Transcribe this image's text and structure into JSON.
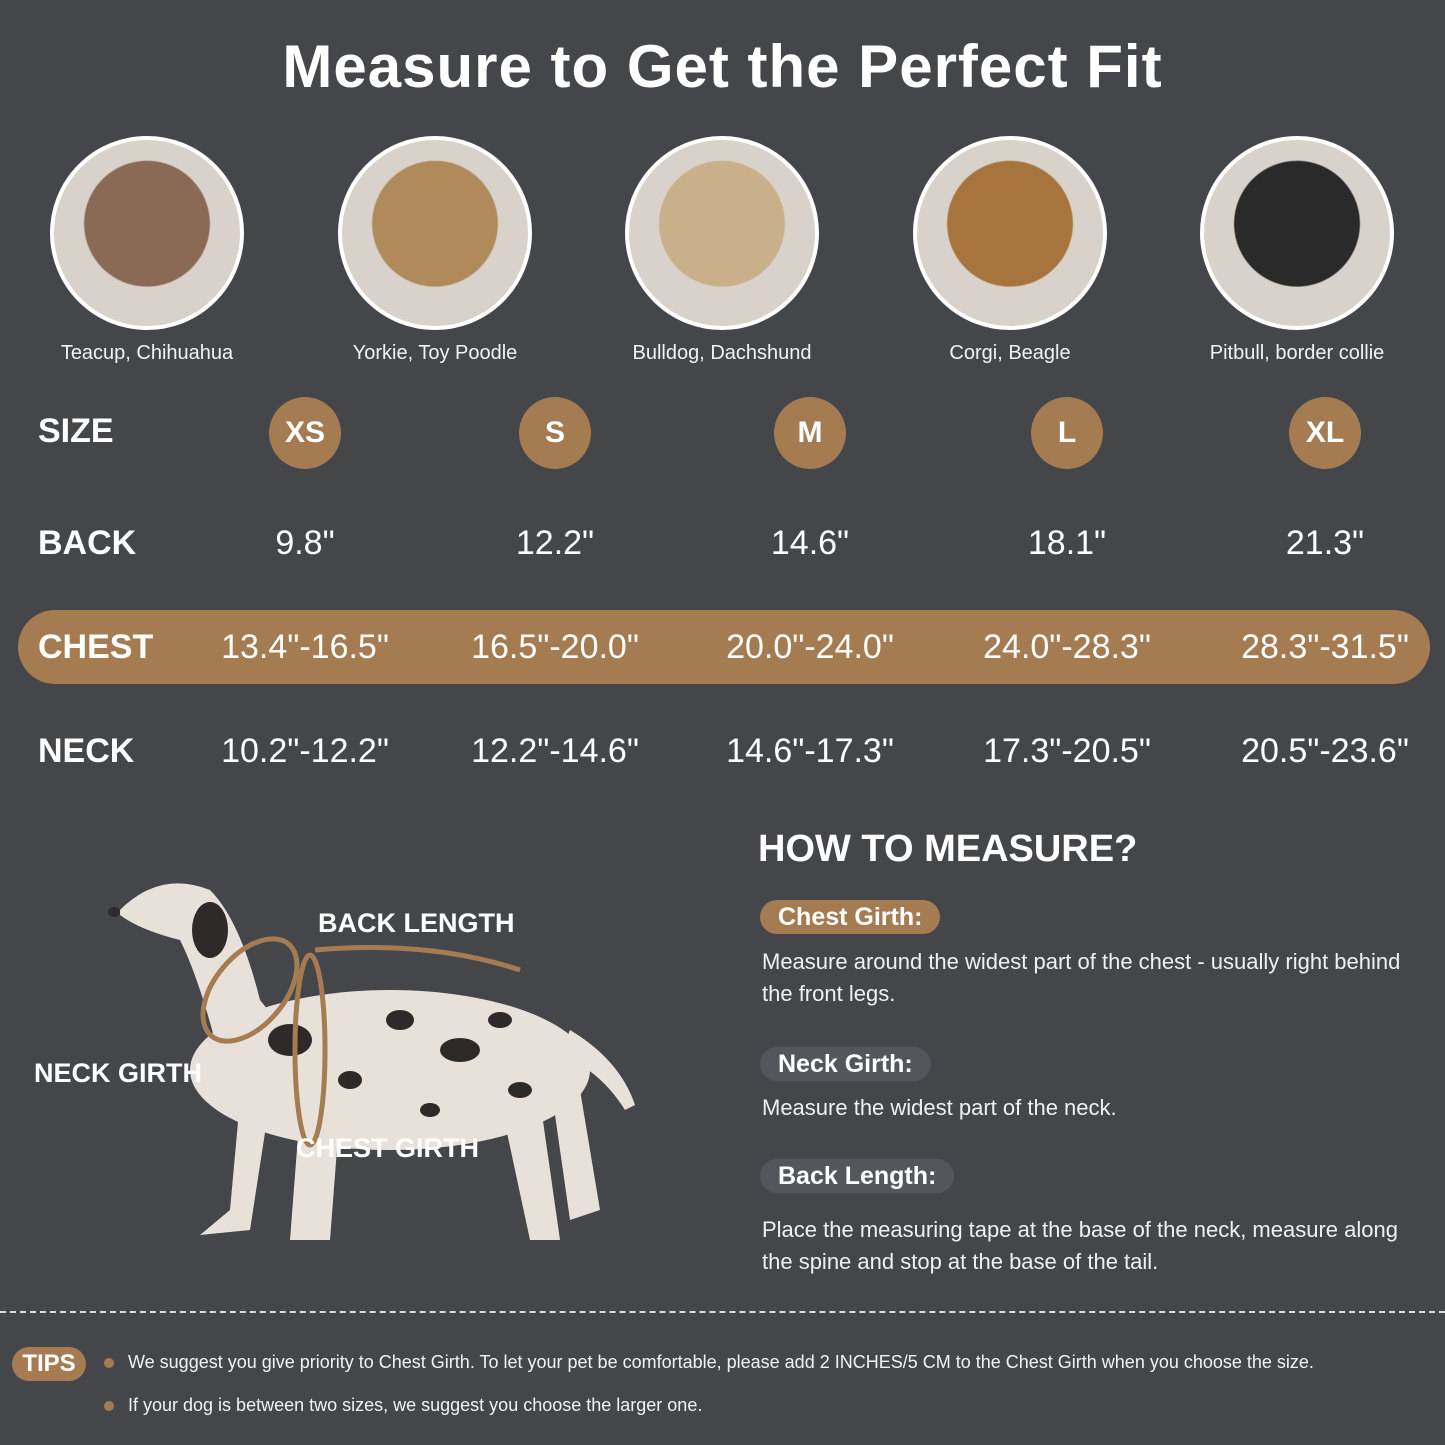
{
  "title": "Measure to Get the Perfect Fit",
  "breeds": [
    {
      "caption": "Teacup, Chihuahua",
      "photo": "chihuahua-photo",
      "color": "#8a6a55"
    },
    {
      "caption": "Yorkie, Toy Poodle",
      "photo": "yorkie-photo",
      "color": "#b08a5a"
    },
    {
      "caption": "Bulldog, Dachshund",
      "photo": "pug-photo",
      "color": "#c9b08a"
    },
    {
      "caption": "Corgi, Beagle",
      "photo": "beagle-photo",
      "color": "#a8743e"
    },
    {
      "caption": "Pitbull, border collie",
      "photo": "border-collie-photo",
      "color": "#2a2a2a"
    }
  ],
  "table": {
    "size_label": "SIZE",
    "sizes": [
      "XS",
      "S",
      "M",
      "L",
      "XL"
    ],
    "back_label": "BACK",
    "back": [
      "9.8\"",
      "12.2\"",
      "14.6\"",
      "18.1\"",
      "21.3\""
    ],
    "chest_label": "CHEST",
    "chest": [
      "13.4\"-16.5\"",
      "16.5\"-20.0\"",
      "20.0\"-24.0\"",
      "24.0\"-28.3\"",
      "28.3\"-31.5\""
    ],
    "neck_label": "NECK",
    "neck": [
      "10.2\"-12.2\"",
      "12.2\"-14.6\"",
      "14.6\"-17.3\"",
      "17.3\"-20.5\"",
      "20.5\"-23.6\""
    ]
  },
  "diagram": {
    "back_length": "BACK LENGTH",
    "neck_girth": "NECK GIRTH",
    "chest_girth": "CHEST GIRTH"
  },
  "how_to": {
    "heading": "HOW TO MEASURE?",
    "chest_title": "Chest Girth:",
    "chest_text": "Measure around the widest part of the chest - usually right behind the front legs.",
    "neck_title": "Neck Girth:",
    "neck_text": "Measure the widest part of the neck.",
    "back_title": "Back Length:",
    "back_text": "Place the measuring tape at the base of the neck, measure along the spine and stop at the base of the tail."
  },
  "tips": {
    "label": "TIPS",
    "items": [
      "We suggest you give priority to Chest Girth. To let your pet be comfortable, please add 2 INCHES/5 CM to the Chest Girth when you choose the size.",
      "If your dog is between two sizes, we suggest you choose the larger one."
    ]
  },
  "colors": {
    "background": "#45464a",
    "accent": "#a57c52"
  }
}
